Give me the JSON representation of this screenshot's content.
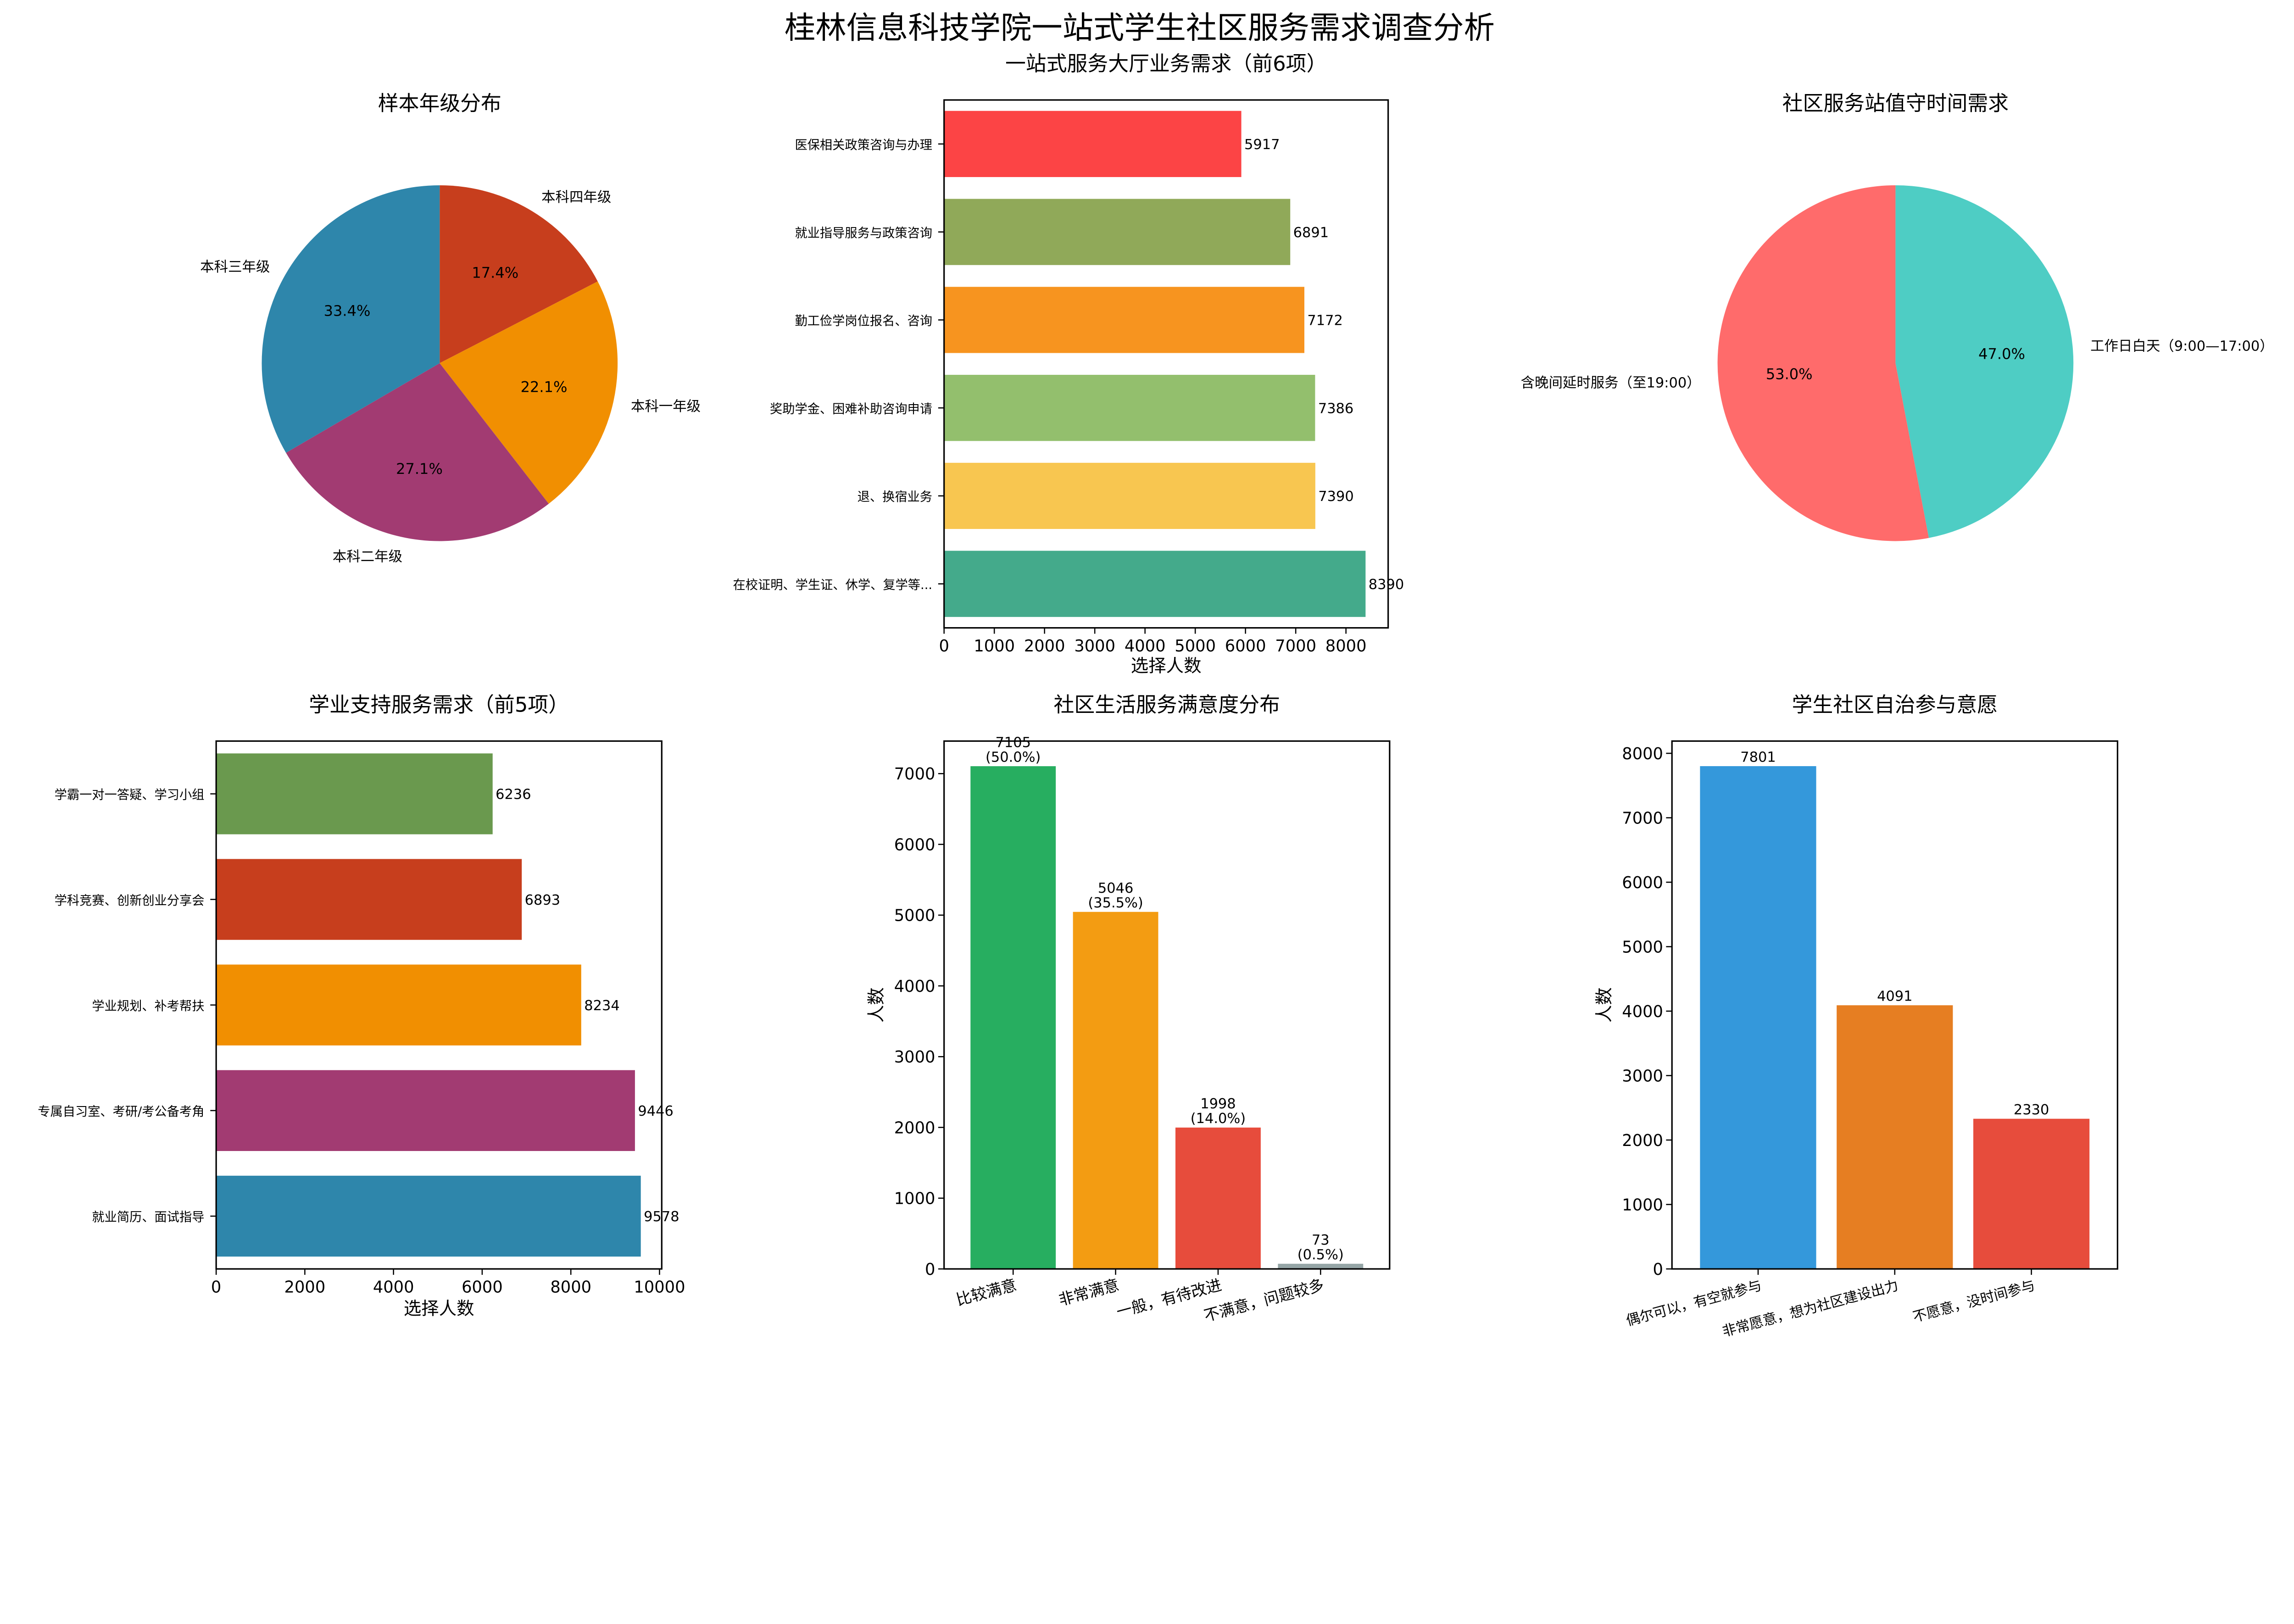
{
  "title": "桂林信息科技学院一站式学生社区服务需求调查分析",
  "chart_data": [
    {
      "type": "pie",
      "title": "样本年级分布",
      "order": "clockwise-from-top",
      "slices": [
        {
          "label": "本科四年级",
          "percent": 17.4,
          "color": "#C73E1D"
        },
        {
          "label": "本科一年级",
          "percent": 22.1,
          "color": "#F18F01"
        },
        {
          "label": "本科二年级",
          "percent": 27.1,
          "color": "#A23B72"
        },
        {
          "label": "本科三年级",
          "percent": 33.4,
          "color": "#2E86AB"
        }
      ]
    },
    {
      "type": "bar",
      "orientation": "horizontal",
      "title": "一站式服务大厅业务需求（前6项）",
      "xlabel": "选择人数",
      "xlim": [
        0,
        8840
      ],
      "xticks": [
        0,
        1000,
        2000,
        3000,
        4000,
        5000,
        6000,
        7000,
        8000
      ],
      "categories": [
        "医保相关政策咨询与办理",
        "就业指导服务与政策咨询",
        "勤工俭学岗位报名、咨询",
        "奖助学金、困难补助咨询申请",
        "退、换宿业务",
        "在校证明、学生证、休学、复学等..."
      ],
      "values": [
        5917,
        6891,
        7172,
        7386,
        7390,
        8390
      ],
      "colors": [
        "#FC4445",
        "#90A959",
        "#F7941F",
        "#93BF6D",
        "#F8C650",
        "#44AA8B"
      ]
    },
    {
      "type": "pie",
      "title": "社区服务站值守时间需求",
      "order": "clockwise-from-top",
      "slices": [
        {
          "label": "工作日白天（9:00—17:00）",
          "percent": 47.0,
          "color": "#4ECDC4"
        },
        {
          "label": "含晚间延时服务（至19:00）",
          "percent": 53.0,
          "color": "#FF6B6B"
        }
      ]
    },
    {
      "type": "bar",
      "orientation": "horizontal",
      "title": "学业支持服务需求（前5项）",
      "xlabel": "选择人数",
      "xlim": [
        0,
        10050
      ],
      "xticks": [
        0,
        2000,
        4000,
        6000,
        8000,
        10000
      ],
      "categories": [
        "学霸一对一答疑、学习小组",
        "学科竞赛、创新创业分享会",
        "学业规划、补考帮扶",
        "专属自习室、考研/考公备考角",
        "就业简历、面试指导"
      ],
      "values": [
        6236,
        6893,
        8234,
        9446,
        9578
      ],
      "colors": [
        "#6A994E",
        "#C73E1D",
        "#F18F01",
        "#A23B72",
        "#2E86AB"
      ]
    },
    {
      "type": "bar",
      "orientation": "vertical",
      "title": "社区生活服务满意度分布",
      "ylabel": "人数",
      "ylim": [
        0,
        7460
      ],
      "yticks": [
        0,
        1000,
        2000,
        3000,
        4000,
        5000,
        6000,
        7000
      ],
      "categories": [
        "比较满意",
        "非常满意",
        "一般，有待改进",
        "不满意，问题较多"
      ],
      "values": [
        7105,
        5046,
        1998,
        73
      ],
      "data_labels": [
        "7105\n(50.0%)",
        "5046\n(35.5%)",
        "1998\n(14.0%)",
        "73\n(0.5%)"
      ],
      "colors": [
        "#27AE60",
        "#F39C12",
        "#E74C3C",
        "#95A5A6"
      ]
    },
    {
      "type": "bar",
      "orientation": "vertical",
      "title": "学生社区自治参与意愿",
      "ylabel": "人数",
      "ylim": [
        0,
        8190
      ],
      "yticks": [
        0,
        1000,
        2000,
        3000,
        4000,
        5000,
        6000,
        7000,
        8000
      ],
      "categories": [
        "偶尔可以，有空就参与",
        "非常愿意，想为社区建设出力",
        "不愿意，没时间参与"
      ],
      "values": [
        7801,
        4091,
        2330
      ],
      "data_labels": [
        "7801",
        "4091",
        "2330"
      ],
      "colors": [
        "#3498DB",
        "#E67E22",
        "#E74C3C"
      ]
    }
  ]
}
